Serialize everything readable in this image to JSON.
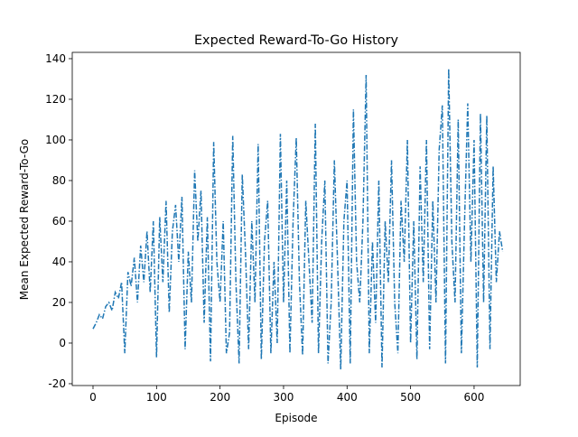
{
  "chart_data": {
    "type": "line",
    "title": "Expected Reward-To-Go History",
    "x_label": "Episode",
    "y_label": "Mean Expected Reward-To-Go",
    "x": [
      0,
      5,
      10,
      15,
      20,
      25,
      30,
      35,
      40,
      45,
      50,
      55,
      60,
      65,
      70,
      75,
      80,
      85,
      90,
      95,
      100,
      105,
      110,
      115,
      120,
      125,
      130,
      135,
      140,
      145,
      150,
      155,
      160,
      165,
      170,
      175,
      180,
      185,
      190,
      195,
      200,
      205,
      210,
      215,
      220,
      225,
      230,
      235,
      240,
      245,
      250,
      255,
      260,
      265,
      270,
      275,
      280,
      285,
      290,
      295,
      300,
      305,
      310,
      315,
      320,
      325,
      330,
      335,
      340,
      345,
      350,
      355,
      360,
      365,
      370,
      375,
      380,
      385,
      390,
      395,
      400,
      405,
      410,
      415,
      420,
      425,
      430,
      435,
      440,
      445,
      450,
      455,
      460,
      465,
      470,
      475,
      480,
      485,
      490,
      495,
      500,
      505,
      510,
      515,
      520,
      525,
      530,
      535,
      540,
      545,
      550,
      555,
      560,
      565,
      570,
      575,
      580,
      585,
      590,
      595,
      600,
      605,
      610,
      615,
      620,
      625,
      630,
      635,
      640,
      645
    ],
    "series": [
      {
        "color": "#1f77b4",
        "values": [
          7,
          10,
          14,
          12,
          18,
          20,
          16,
          25,
          22,
          30,
          -5,
          35,
          28,
          42,
          20,
          48,
          30,
          55,
          25,
          60,
          -7,
          62,
          30,
          70,
          15,
          55,
          68,
          40,
          72,
          -3,
          45,
          20,
          85,
          50,
          75,
          10,
          62,
          -9,
          99,
          40,
          20,
          60,
          -5,
          5,
          102,
          30,
          -10,
          83,
          45,
          -3,
          60,
          20,
          98,
          -8,
          50,
          70,
          -5,
          40,
          0,
          103,
          20,
          80,
          -5,
          60,
          101,
          30,
          -6,
          70,
          40,
          10,
          108,
          -5,
          50,
          80,
          -10,
          20,
          90,
          40,
          -13,
          60,
          80,
          -10,
          115,
          40,
          20,
          60,
          132,
          -5,
          50,
          10,
          80,
          -12,
          60,
          30,
          90,
          20,
          -5,
          70,
          40,
          100,
          0,
          60,
          -8,
          87,
          30,
          100,
          -3,
          70,
          20,
          95,
          117,
          -10,
          135,
          50,
          20,
          110,
          -5,
          60,
          118,
          40,
          100,
          -12,
          113,
          20,
          112,
          -3,
          87,
          30,
          55,
          45
        ]
      }
    ],
    "xlim": [
      -32.7,
      672.6
    ],
    "ylim": [
      -20.9,
      143.1
    ],
    "xticks": [
      0,
      100,
      200,
      300,
      400,
      500,
      600
    ],
    "yticks": [
      -20,
      0,
      20,
      40,
      60,
      80,
      100,
      120,
      140
    ]
  }
}
